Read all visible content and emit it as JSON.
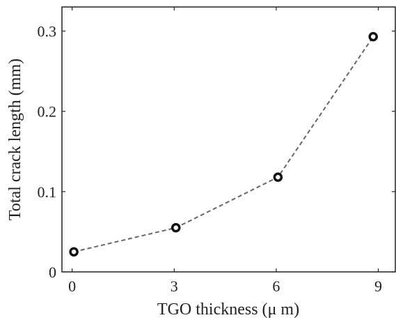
{
  "chart_data": {
    "type": "line",
    "title": "",
    "xlabel": "TGO thickness (μ m)",
    "ylabel": "Total crack length (mm)",
    "xlim": [
      -0.3,
      9.5
    ],
    "ylim": [
      0,
      0.33
    ],
    "x_ticks": [
      0,
      3,
      6,
      9
    ],
    "x_tick_labels": [
      "0",
      "3",
      "6",
      "9"
    ],
    "y_ticks": [
      0,
      0.1,
      0.2,
      0.3
    ],
    "y_tick_labels": [
      "0",
      "0.1",
      "0.2",
      "0.3"
    ],
    "grid": false,
    "series": [
      {
        "x": [
          0.05,
          3.05,
          6.05,
          8.85
        ],
        "y": [
          0.025,
          0.055,
          0.118,
          0.293
        ],
        "line_style": "dashed",
        "marker": "ring",
        "color": "#666666",
        "marker_color": "#111111"
      }
    ]
  }
}
